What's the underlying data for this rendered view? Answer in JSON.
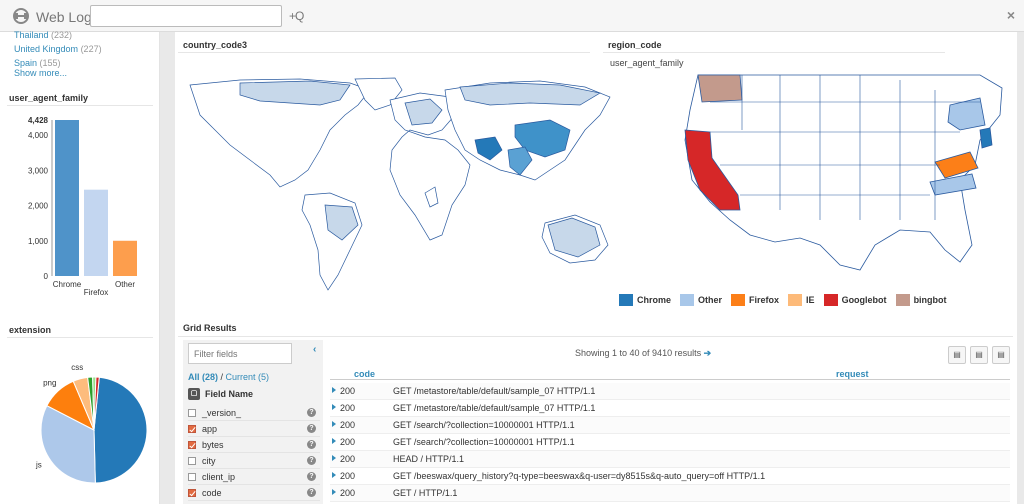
{
  "app": {
    "title": "Web Logs",
    "search_value": "",
    "search_placeholder": "",
    "add_search_label": "+Q",
    "close_label": "×"
  },
  "country_facet": {
    "items": [
      {
        "label": "Thailand",
        "count": "(232)"
      },
      {
        "label": "United Kingdom",
        "count": "(227)"
      },
      {
        "label": "Spain",
        "count": "(155)"
      }
    ],
    "show_more": "Show more..."
  },
  "user_agent_family": {
    "title": "user_agent_family",
    "y_ticks": [
      "4,428",
      "4,000",
      "3,000",
      "2,000",
      "1,000",
      "0"
    ]
  },
  "extension": {
    "title": "extension"
  },
  "map": {
    "country_title": "country_code3",
    "region_title": "region_code",
    "region_subtitle": "user_agent_family",
    "legend": [
      {
        "label": "Chrome",
        "color": "#2479b8"
      },
      {
        "label": "Other",
        "color": "#a8c7e9"
      },
      {
        "label": "Firefox",
        "color": "#fc7f18"
      },
      {
        "label": "IE",
        "color": "#fdba79"
      },
      {
        "label": "Googlebot",
        "color": "#d62728"
      },
      {
        "label": "bingbot",
        "color": "#c39a8c"
      }
    ]
  },
  "grid": {
    "title": "Grid Results",
    "filter_placeholder": "Filter fields",
    "all_label": "All (28)",
    "separator": " / ",
    "current_label": "Current (5)",
    "field_name_header": "Field Name",
    "fields": [
      {
        "name": "_version_",
        "checked": false
      },
      {
        "name": "app",
        "checked": true
      },
      {
        "name": "bytes",
        "checked": true
      },
      {
        "name": "city",
        "checked": false
      },
      {
        "name": "client_ip",
        "checked": false
      },
      {
        "name": "code",
        "checked": true
      }
    ],
    "showing_text": "Showing 1 to 40 of 9410 results",
    "columns": {
      "code": "code",
      "request": "request"
    },
    "rows": [
      {
        "code": "200",
        "request": "GET /metastore/table/default/sample_07 HTTP/1.1"
      },
      {
        "code": "200",
        "request": "GET /metastore/table/default/sample_07 HTTP/1.1"
      },
      {
        "code": "200",
        "request": "GET /search/?collection=10000001 HTTP/1.1"
      },
      {
        "code": "200",
        "request": "GET /search/?collection=10000001 HTTP/1.1"
      },
      {
        "code": "200",
        "request": "HEAD / HTTP/1.1"
      },
      {
        "code": "200",
        "request": "GET /beeswax/query_history?q-type=beeswax&q-user=dy8515s&q-auto_query=off HTTP/1.1"
      },
      {
        "code": "200",
        "request": "GET / HTTP/1.1"
      }
    ]
  },
  "chart_data": [
    {
      "type": "bar",
      "title": "user_agent_family",
      "categories": [
        "Chrome",
        "Firefox",
        "Other"
      ],
      "values": [
        4428,
        2450,
        1000
      ],
      "colors": [
        "#4f93c9",
        "#c3d6f0",
        "#fd9e4d"
      ],
      "ylim": [
        0,
        4428
      ],
      "grid": false
    },
    {
      "type": "pie",
      "title": "extension",
      "labels": [
        "",
        "js",
        "png",
        "css",
        "",
        "",
        ""
      ],
      "values": [
        48,
        33,
        11,
        4.5,
        1.5,
        1,
        1
      ],
      "colors": [
        "#2479b8",
        "#adc8ea",
        "#fd7f0d",
        "#fdbc7d",
        "#2ca02c",
        "#98df8a",
        "#d62728"
      ]
    }
  ]
}
